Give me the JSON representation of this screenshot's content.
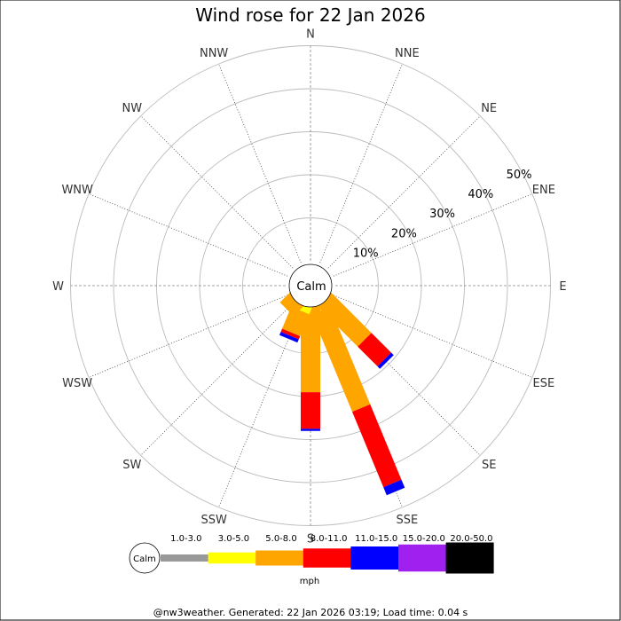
{
  "chart_data": {
    "type": "wind-rose",
    "title": "Wind rose for 22 Jan 2026",
    "directions": [
      "N",
      "NNE",
      "NE",
      "ENE",
      "E",
      "ESE",
      "SE",
      "SSE",
      "S",
      "SSW",
      "SW",
      "WSW",
      "W",
      "WNW",
      "NW",
      "NNW"
    ],
    "rings": [
      10,
      20,
      30,
      40,
      50
    ],
    "ring_labels": [
      "10%",
      "20%",
      "30%",
      "40%",
      "50%"
    ],
    "center_label": "Calm",
    "unit_label": "mph",
    "speed_bins": [
      "1.0-3.0",
      "3.0-5.0",
      "5.0-8.0",
      "8.0-11.0",
      "11.0-15.0",
      "15.0-20.0",
      "20.0-50.0"
    ],
    "bin_colors": [
      "#999999",
      "#ffff00",
      "#ffa500",
      "#ff0000",
      "#0000ff",
      "#a020f0",
      "#000000"
    ],
    "series": [
      {
        "direction": "SE",
        "values": [
          0,
          0,
          12.0,
          6.5,
          0.8,
          0,
          0
        ]
      },
      {
        "direction": "SSE",
        "values": [
          0,
          0.5,
          24.5,
          19.0,
          2.0,
          0,
          0
        ]
      },
      {
        "direction": "S",
        "values": [
          0,
          0,
          19.0,
          8.5,
          0.5,
          0,
          0
        ]
      },
      {
        "direction": "SSW",
        "values": [
          0,
          0.5,
          5.5,
          0.8,
          0.8,
          0,
          0
        ]
      },
      {
        "direction": "SW",
        "values": [
          0,
          0,
          2.0,
          0,
          0,
          0,
          0
        ]
      }
    ]
  },
  "footer": "@nw3weather. Generated: 22 Jan 2026 03:19; Load time: 0.04 s"
}
